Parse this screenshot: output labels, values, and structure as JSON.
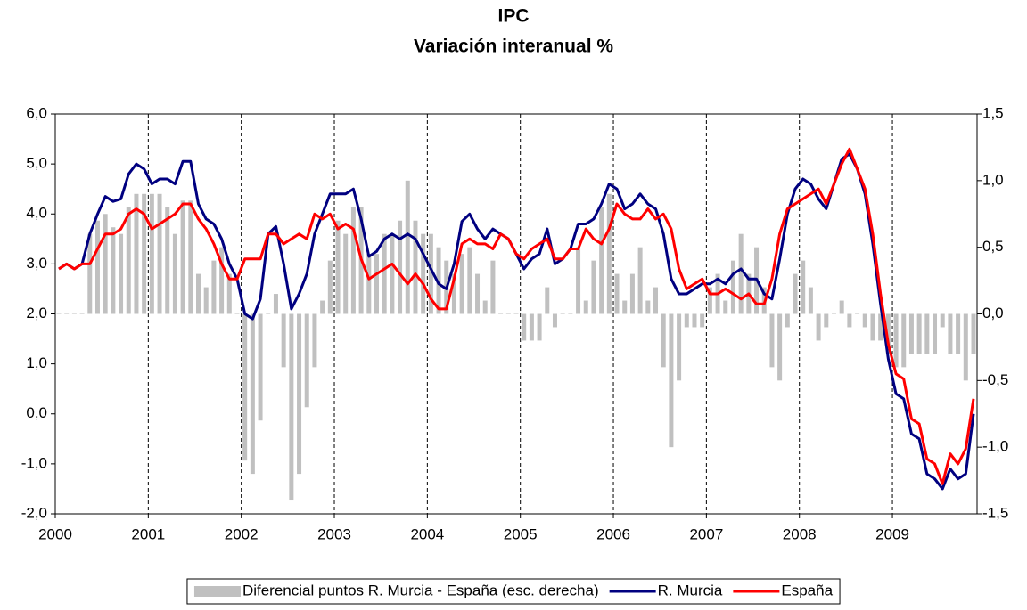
{
  "chart_data": {
    "type": "line",
    "title": "IPC",
    "subtitle": "Variación interanual %",
    "categories": [
      "2000",
      null,
      null,
      null,
      null,
      null,
      null,
      null,
      null,
      null,
      null,
      null,
      "2001",
      null,
      null,
      null,
      null,
      null,
      null,
      null,
      null,
      null,
      null,
      null,
      "2002",
      null,
      null,
      null,
      null,
      null,
      null,
      null,
      null,
      null,
      null,
      null,
      "2003",
      null,
      null,
      null,
      null,
      null,
      null,
      null,
      null,
      null,
      null,
      null,
      "2004",
      null,
      null,
      null,
      null,
      null,
      null,
      null,
      null,
      null,
      null,
      null,
      "2005",
      null,
      null,
      null,
      null,
      null,
      null,
      null,
      null,
      null,
      null,
      null,
      "2006",
      null,
      null,
      null,
      null,
      null,
      null,
      null,
      null,
      null,
      null,
      null,
      "2007",
      null,
      null,
      null,
      null,
      null,
      null,
      null,
      null,
      null,
      null,
      null,
      "2008",
      null,
      null,
      null,
      null,
      null,
      null,
      null,
      null,
      null,
      null,
      null,
      "2009",
      null,
      null,
      null,
      null,
      null,
      null,
      null,
      null,
      null,
      null
    ],
    "series": [
      {
        "name": "Diferencial puntos R. Murcia - España (esc. derecha)",
        "type": "bar",
        "axis": "y2",
        "color": "#c0c0c0",
        "values": [
          0.0,
          0.0,
          0.0,
          0.0,
          0.6,
          0.7,
          0.75,
          0.65,
          0.6,
          0.8,
          0.9,
          0.9,
          0.9,
          0.9,
          0.8,
          0.6,
          0.85,
          0.85,
          0.3,
          0.2,
          0.4,
          0.5,
          0.3,
          0.0,
          -1.1,
          -1.2,
          -0.8,
          0.0,
          0.15,
          -0.4,
          -1.4,
          -1.2,
          -0.7,
          -0.4,
          0.1,
          0.4,
          0.7,
          0.6,
          0.8,
          0.8,
          0.45,
          0.45,
          0.6,
          0.6,
          0.7,
          1.0,
          0.7,
          0.6,
          0.6,
          0.5,
          0.4,
          0.3,
          0.45,
          0.5,
          0.3,
          0.1,
          0.4,
          0.0,
          0.0,
          0.0,
          -0.2,
          -0.2,
          -0.2,
          0.2,
          -0.1,
          0.0,
          0.0,
          0.5,
          0.1,
          0.4,
          0.8,
          0.9,
          0.3,
          0.1,
          0.3,
          0.5,
          0.1,
          0.2,
          -0.4,
          -1.0,
          -0.5,
          -0.1,
          -0.1,
          -0.1,
          0.2,
          0.3,
          0.1,
          0.4,
          0.6,
          0.3,
          0.5,
          0.2,
          -0.4,
          -0.5,
          -0.1,
          0.3,
          0.4,
          0.2,
          -0.2,
          -0.1,
          0.0,
          0.1,
          -0.1,
          0.0,
          -0.1,
          -0.2,
          -0.2,
          -0.3,
          -0.4,
          -0.4,
          -0.3,
          -0.3,
          -0.3,
          -0.3,
          -0.1,
          -0.3,
          -0.3,
          -0.5,
          -0.3
        ]
      },
      {
        "name": "R. Murcia",
        "type": "line",
        "color": "#000080",
        "values": [
          2.9,
          3.0,
          2.9,
          3.0,
          3.6,
          4.0,
          4.35,
          4.25,
          4.3,
          4.8,
          5.0,
          4.9,
          4.6,
          4.7,
          4.7,
          4.6,
          5.05,
          5.05,
          4.2,
          3.9,
          3.8,
          3.5,
          3.0,
          2.7,
          2.0,
          1.9,
          2.3,
          3.6,
          3.75,
          3.0,
          2.1,
          2.4,
          2.8,
          3.6,
          4.0,
          4.4,
          4.4,
          4.4,
          4.5,
          3.9,
          3.15,
          3.25,
          3.5,
          3.6,
          3.5,
          3.6,
          3.5,
          3.2,
          2.9,
          2.6,
          2.5,
          3.0,
          3.85,
          4.0,
          3.7,
          3.5,
          3.7,
          3.6,
          3.5,
          3.2,
          2.9,
          3.1,
          3.2,
          3.7,
          3.0,
          3.1,
          3.3,
          3.8,
          3.8,
          3.9,
          4.2,
          4.6,
          4.5,
          4.1,
          4.2,
          4.4,
          4.2,
          4.1,
          3.6,
          2.7,
          2.4,
          2.4,
          2.5,
          2.6,
          2.6,
          2.7,
          2.6,
          2.8,
          2.9,
          2.7,
          2.7,
          2.4,
          2.3,
          3.1,
          4.0,
          4.5,
          4.7,
          4.6,
          4.3,
          4.1,
          4.6,
          5.1,
          5.2,
          4.9,
          4.4,
          3.4,
          2.2,
          1.1,
          0.4,
          0.3,
          -0.4,
          -0.5,
          -1.2,
          -1.3,
          -1.5,
          -1.1,
          -1.3,
          -1.2,
          0.0
        ]
      },
      {
        "name": "España",
        "type": "line",
        "color": "#ff0000",
        "values": [
          2.9,
          3.0,
          2.9,
          3.0,
          3.0,
          3.3,
          3.6,
          3.6,
          3.7,
          4.0,
          4.1,
          4.0,
          3.7,
          3.8,
          3.9,
          4.0,
          4.2,
          4.2,
          3.9,
          3.7,
          3.4,
          3.0,
          2.7,
          2.7,
          3.1,
          3.1,
          3.1,
          3.6,
          3.6,
          3.4,
          3.5,
          3.6,
          3.5,
          4.0,
          3.9,
          4.0,
          3.7,
          3.8,
          3.7,
          3.1,
          2.7,
          2.8,
          2.9,
          3.0,
          2.8,
          2.6,
          2.8,
          2.6,
          2.3,
          2.1,
          2.1,
          2.7,
          3.4,
          3.5,
          3.4,
          3.4,
          3.3,
          3.6,
          3.5,
          3.2,
          3.1,
          3.3,
          3.4,
          3.5,
          3.1,
          3.1,
          3.3,
          3.3,
          3.7,
          3.5,
          3.4,
          3.7,
          4.2,
          4.0,
          3.9,
          3.9,
          4.1,
          3.9,
          4.0,
          3.7,
          2.9,
          2.5,
          2.6,
          2.7,
          2.4,
          2.4,
          2.5,
          2.4,
          2.3,
          2.4,
          2.2,
          2.2,
          2.7,
          3.6,
          4.1,
          4.2,
          4.3,
          4.4,
          4.5,
          4.2,
          4.6,
          5.0,
          5.3,
          4.9,
          4.5,
          3.6,
          2.4,
          1.4,
          0.8,
          0.7,
          -0.1,
          -0.2,
          -0.9,
          -1.0,
          -1.4,
          -0.8,
          -1.0,
          -0.7,
          0.3
        ]
      }
    ],
    "ylim": [
      -2,
      6
    ],
    "yticks": [
      {
        "value": -2,
        "label": "-2,0"
      },
      {
        "value": -1,
        "label": "-1,0"
      },
      {
        "value": 0,
        "label": "0,0"
      },
      {
        "value": 1,
        "label": "1,0"
      },
      {
        "value": 2,
        "label": "2,0"
      },
      {
        "value": 3,
        "label": "3,0"
      },
      {
        "value": 4,
        "label": "4,0"
      },
      {
        "value": 5,
        "label": "5,0"
      },
      {
        "value": 6,
        "label": "6,0"
      }
    ],
    "y2lim": [
      -1.5,
      1.5
    ],
    "y2ticks": [
      {
        "value": -1.5,
        "label": "-1,5"
      },
      {
        "value": -1,
        "label": "-1,0"
      },
      {
        "value": -0.5,
        "label": "-0,5"
      },
      {
        "value": 0,
        "label": "0,0"
      },
      {
        "value": 0.5,
        "label": "0,5"
      },
      {
        "value": 1,
        "label": "1,0"
      },
      {
        "value": 1.5,
        "label": "1,5"
      }
    ],
    "grid": true,
    "legend": "bottom"
  }
}
